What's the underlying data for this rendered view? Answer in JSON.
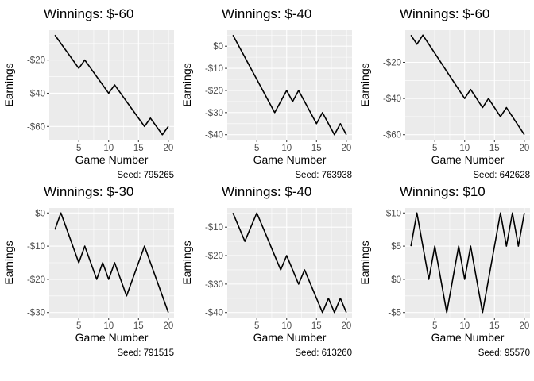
{
  "colors": {
    "panel_background": "#ebebeb",
    "gridline": "#ffffff",
    "line": "#000000",
    "tick_label": "#4d4d4d"
  },
  "chart_data": [
    {
      "type": "line",
      "title": "Winnings: $-60",
      "xlabel": "Game Number",
      "ylabel": "Earnings",
      "caption": "Seed: 795265",
      "x": [
        1,
        2,
        3,
        4,
        5,
        6,
        7,
        8,
        9,
        10,
        11,
        12,
        13,
        14,
        15,
        16,
        17,
        18,
        19,
        20
      ],
      "values": [
        -5,
        -10,
        -15,
        -20,
        -25,
        -20,
        -25,
        -30,
        -35,
        -40,
        -35,
        -40,
        -45,
        -50,
        -55,
        -60,
        -55,
        -60,
        -65,
        -60
      ],
      "xlim": [
        0.05,
        20.95
      ],
      "ylim": [
        -68,
        -2
      ],
      "xticks": [
        5,
        10,
        15,
        20
      ],
      "xtick_labels": [
        "5",
        "10",
        "15",
        "20"
      ],
      "yticks": [
        -20,
        -40,
        -60
      ],
      "ytick_labels": [
        "-$20",
        "-$40",
        "-$60"
      ],
      "grid": true
    },
    {
      "type": "line",
      "title": "Winnings: $-40",
      "xlabel": "Game Number",
      "ylabel": "Earnings",
      "caption": "Seed: 763938",
      "x": [
        1,
        2,
        3,
        4,
        5,
        6,
        7,
        8,
        9,
        10,
        11,
        12,
        13,
        14,
        15,
        16,
        17,
        18,
        19,
        20
      ],
      "values": [
        5,
        0,
        -5,
        -10,
        -15,
        -20,
        -25,
        -30,
        -25,
        -20,
        -25,
        -20,
        -25,
        -30,
        -35,
        -30,
        -35,
        -40,
        -35,
        -40
      ],
      "xlim": [
        0.05,
        20.95
      ],
      "ylim": [
        -42.25,
        7.25
      ],
      "xticks": [
        5,
        10,
        15,
        20
      ],
      "xtick_labels": [
        "5",
        "10",
        "15",
        "20"
      ],
      "yticks": [
        0,
        -10,
        -20,
        -30,
        -40
      ],
      "ytick_labels": [
        "$0",
        "-$10",
        "-$20",
        "-$30",
        "-$40"
      ],
      "grid": true
    },
    {
      "type": "line",
      "title": "Winnings: $-60",
      "xlabel": "Game Number",
      "ylabel": "Earnings",
      "caption": "Seed: 642628",
      "x": [
        1,
        2,
        3,
        4,
        5,
        6,
        7,
        8,
        9,
        10,
        11,
        12,
        13,
        14,
        15,
        16,
        17,
        18,
        19,
        20
      ],
      "values": [
        -5,
        -10,
        -5,
        -10,
        -15,
        -20,
        -25,
        -30,
        -35,
        -40,
        -35,
        -40,
        -45,
        -40,
        -45,
        -50,
        -45,
        -50,
        -55,
        -60
      ],
      "xlim": [
        0.05,
        20.95
      ],
      "ylim": [
        -62.75,
        -2.25
      ],
      "xticks": [
        5,
        10,
        15,
        20
      ],
      "xtick_labels": [
        "5",
        "10",
        "15",
        "20"
      ],
      "yticks": [
        -20,
        -40,
        -60
      ],
      "ytick_labels": [
        "-$20",
        "-$40",
        "-$60"
      ],
      "grid": true
    },
    {
      "type": "line",
      "title": "Winnings: $-30",
      "xlabel": "Game Number",
      "ylabel": "Earnings",
      "caption": "Seed: 791515",
      "x": [
        1,
        2,
        3,
        4,
        5,
        6,
        7,
        8,
        9,
        10,
        11,
        12,
        13,
        14,
        15,
        16,
        17,
        18,
        19,
        20
      ],
      "values": [
        -5,
        0,
        -5,
        -10,
        -15,
        -10,
        -15,
        -20,
        -15,
        -20,
        -15,
        -20,
        -25,
        -20,
        -15,
        -10,
        -15,
        -20,
        -25,
        -30
      ],
      "xlim": [
        0.05,
        20.95
      ],
      "ylim": [
        -31.5,
        1.5
      ],
      "xticks": [
        5,
        10,
        15,
        20
      ],
      "xtick_labels": [
        "5",
        "10",
        "15",
        "20"
      ],
      "yticks": [
        0,
        -10,
        -20,
        -30
      ],
      "ytick_labels": [
        "$0",
        "-$10",
        "-$20",
        "-$30"
      ],
      "grid": true
    },
    {
      "type": "line",
      "title": "Winnings: $-40",
      "xlabel": "Game Number",
      "ylabel": "Earnings",
      "caption": "Seed: 613260",
      "x": [
        1,
        2,
        3,
        4,
        5,
        6,
        7,
        8,
        9,
        10,
        11,
        12,
        13,
        14,
        15,
        16,
        17,
        18,
        19,
        20
      ],
      "values": [
        -5,
        -10,
        -15,
        -10,
        -5,
        -10,
        -15,
        -20,
        -25,
        -20,
        -25,
        -30,
        -25,
        -30,
        -35,
        -40,
        -35,
        -40,
        -35,
        -40
      ],
      "xlim": [
        0.05,
        20.95
      ],
      "ylim": [
        -41.75,
        -3.25
      ],
      "xticks": [
        5,
        10,
        15,
        20
      ],
      "xtick_labels": [
        "5",
        "10",
        "15",
        "20"
      ],
      "yticks": [
        -10,
        -20,
        -30,
        -40
      ],
      "ytick_labels": [
        "-$10",
        "-$20",
        "-$30",
        "-$40"
      ],
      "grid": true
    },
    {
      "type": "line",
      "title": "Winnings: $10",
      "xlabel": "Game Number",
      "ylabel": "Earnings",
      "caption": "Seed: 95570",
      "x": [
        1,
        2,
        3,
        4,
        5,
        6,
        7,
        8,
        9,
        10,
        11,
        12,
        13,
        14,
        15,
        16,
        17,
        18,
        19,
        20
      ],
      "values": [
        5,
        10,
        5,
        0,
        5,
        0,
        -5,
        0,
        5,
        0,
        5,
        0,
        -5,
        0,
        5,
        10,
        5,
        10,
        5,
        10
      ],
      "xlim": [
        0.05,
        20.95
      ],
      "ylim": [
        -5.75,
        10.75
      ],
      "xticks": [
        5,
        10,
        15,
        20
      ],
      "xtick_labels": [
        "5",
        "10",
        "15",
        "20"
      ],
      "yticks": [
        10,
        5,
        0,
        -5
      ],
      "ytick_labels": [
        "$10",
        "$5",
        "$0",
        "-$5"
      ],
      "grid": true
    }
  ]
}
